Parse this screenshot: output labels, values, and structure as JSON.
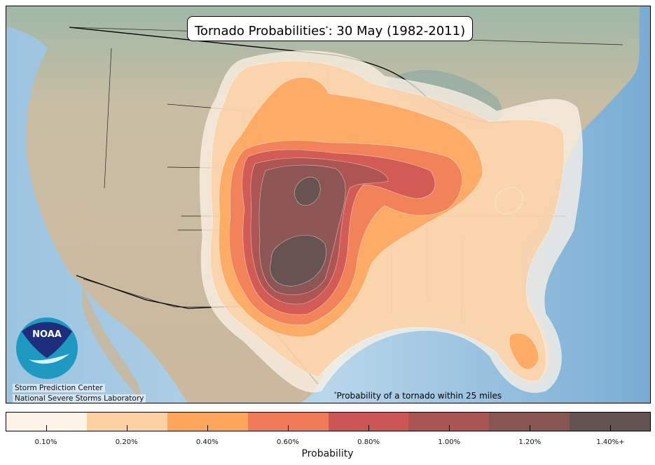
{
  "title": {
    "text": "Tornado Probabilities",
    "marker": "*",
    "suffix": ": 30 May (1982-2011)"
  },
  "credits": [
    "Storm Prediction Center",
    "National Severe Storms Laboratory"
  ],
  "logo": {
    "text": "NOAA"
  },
  "footnote": {
    "marker": "*",
    "text": "Probability of a tornado within 25 miles"
  },
  "colorbar": {
    "label": "Probability",
    "levels": [
      {
        "label": "0.10%",
        "color": "#fef3e7"
      },
      {
        "label": "0.20%",
        "color": "#fdd0a2"
      },
      {
        "label": "0.40%",
        "color": "#fda55a"
      },
      {
        "label": "0.60%",
        "color": "#ee7a58"
      },
      {
        "label": "0.80%",
        "color": "#cc5555"
      },
      {
        "label": "1.00%",
        "color": "#a85553"
      },
      {
        "label": "1.20%",
        "color": "#875653"
      },
      {
        "label": "1.40%+",
        "color": "#635352"
      }
    ]
  }
}
